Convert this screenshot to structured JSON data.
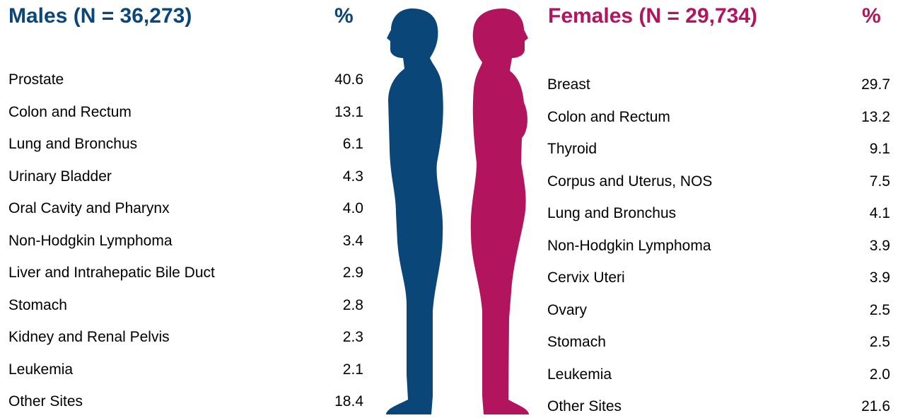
{
  "males": {
    "title": "Males (N = 36,273)",
    "pct_header": "%",
    "rows": [
      [
        "Prostate",
        "40.6"
      ],
      [
        "Colon and Rectum",
        "13.1"
      ],
      [
        "Lung and Bronchus",
        "6.1"
      ],
      [
        "Urinary Bladder",
        "4.3"
      ],
      [
        "Oral Cavity and Pharynx",
        "4.0"
      ],
      [
        "Non-Hodgkin Lymphoma",
        "3.4"
      ],
      [
        "Liver and Intrahepatic Bile Duct",
        "2.9"
      ],
      [
        "Stomach",
        "2.8"
      ],
      [
        "Kidney and Renal Pelvis",
        "2.3"
      ],
      [
        "Leukemia",
        "2.1"
      ],
      [
        "Other Sites",
        "18.4"
      ]
    ]
  },
  "females": {
    "title": "Females (N = 29,734)",
    "pct_header": "%",
    "rows": [
      [
        "Breast",
        "29.7"
      ],
      [
        "Colon and Rectum",
        "13.2"
      ],
      [
        "Thyroid",
        "9.1"
      ],
      [
        "Corpus and Uterus, NOS",
        "7.5"
      ],
      [
        "Lung and Bronchus",
        "4.1"
      ],
      [
        "Non-Hodgkin Lymphoma",
        "3.9"
      ],
      [
        "Cervix Uteri",
        "3.9"
      ],
      [
        "Ovary",
        "2.5"
      ],
      [
        "Stomach",
        "2.5"
      ],
      [
        "Leukemia",
        "2.0"
      ],
      [
        "Other Sites",
        "21.6"
      ]
    ]
  }
}
